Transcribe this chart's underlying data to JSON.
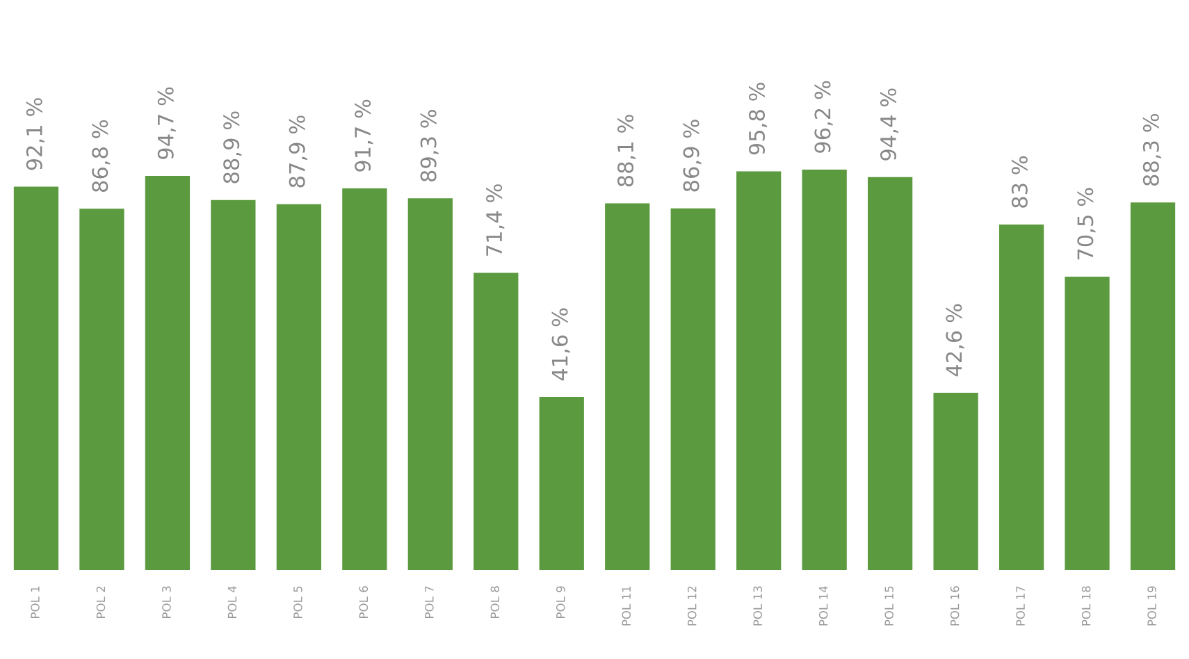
{
  "chart_data": {
    "type": "bar",
    "categories": [
      "POL 1",
      "POL 2",
      "POL 3",
      "POL 4",
      "POL 5",
      "POL 6",
      "POL 7",
      "POL 8",
      "POL 9",
      "POL 11",
      "POL 12",
      "POL 13",
      "POL 14",
      "POL 15",
      "POL 16",
      "POL 17",
      "POL 18",
      "POL 19"
    ],
    "values": [
      92.1,
      86.8,
      94.7,
      88.9,
      87.9,
      91.7,
      89.3,
      71.4,
      41.6,
      88.1,
      86.9,
      95.8,
      96.2,
      94.4,
      42.6,
      83,
      70.5,
      88.3
    ],
    "value_labels": [
      "92,1 %",
      "86,8 %",
      "94,7 %",
      "88,9 %",
      "87,9 %",
      "91,7 %",
      "89,3 %",
      "71,4 %",
      "41,6 %",
      "88,1 %",
      "86,9 %",
      "95,8 %",
      "96,2 %",
      "94,4 %",
      "42,6 %",
      "83 %",
      "70,5 %",
      "88,3 %"
    ],
    "color": "#5b9a3e",
    "grid": false,
    "legend": false
  }
}
